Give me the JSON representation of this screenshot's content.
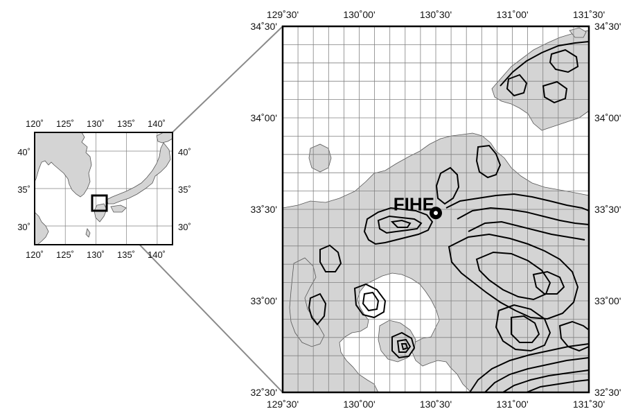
{
  "colors": {
    "land": "#d4d4d4",
    "sea": "#ffffff",
    "grid": "#808080",
    "frame": "#000000",
    "contour": "#000000",
    "connector": "#8a8a8a"
  },
  "inset_map": {
    "lon_ticks": [
      "120˚",
      "125˚",
      "130˚",
      "135˚",
      "140˚"
    ],
    "lat_ticks": [
      "40˚",
      "35˚",
      "30˚"
    ],
    "lon_range": [
      120,
      142.5
    ],
    "lat_range": [
      27.5,
      42.5
    ],
    "highlight_box": {
      "lon": [
        129.5,
        131.5
      ],
      "lat": [
        32.5,
        34.5
      ]
    }
  },
  "main_map": {
    "lon_ticks": [
      "129˚30'",
      "130˚00'",
      "130˚30'",
      "131˚00'",
      "131˚30'"
    ],
    "lat_ticks": [
      "34˚30'",
      "34˚00'",
      "33˚30'",
      "33˚00'",
      "32˚30'"
    ],
    "lon_range": [
      129.5,
      131.5
    ],
    "lat_range": [
      32.5,
      34.5
    ],
    "grid_step_deg": 0.1,
    "station": {
      "name": "FIHE",
      "lon": 130.5,
      "lat": 33.48
    }
  }
}
